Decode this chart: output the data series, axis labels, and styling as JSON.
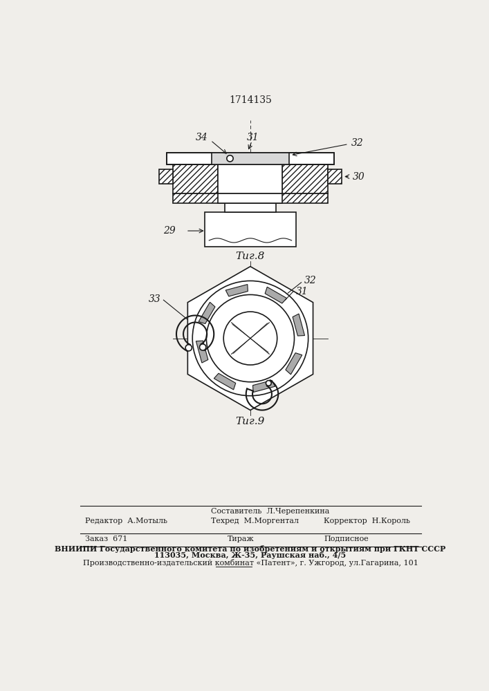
{
  "title": "1714135",
  "bg_color": "#f0eeea",
  "fig8_label": "Τиг.8",
  "fig9_label": "Τиг.9",
  "label_29": "29",
  "label_30": "30",
  "label_31": "31",
  "label_32": "32",
  "label_33": "33",
  "label_34": "34",
  "footer_sestavitel_label": "Составитель  Л.Черепенкина",
  "footer_redaktor_label": "Редактор  А.Мотыль",
  "footer_tehred_label": "Техред  М.Моргентал",
  "footer_korrektor_label": "Корректор  Н.Король",
  "footer_zakaz": "Заказ  671",
  "footer_tirazh": "Тираж",
  "footer_podpisnoe": "Подписное",
  "footer_vniip1": "ВНИИПИ Государственного комитета по изобретениям и открытиям при ГКНТ СССР",
  "footer_vniip2": "113035, Москва, Ж-35, Раушская наб., 4/5",
  "footer_bottom": "Производственно-издательский комбинат «Патент», г. Ужгород, ул.Гагарина, 101"
}
